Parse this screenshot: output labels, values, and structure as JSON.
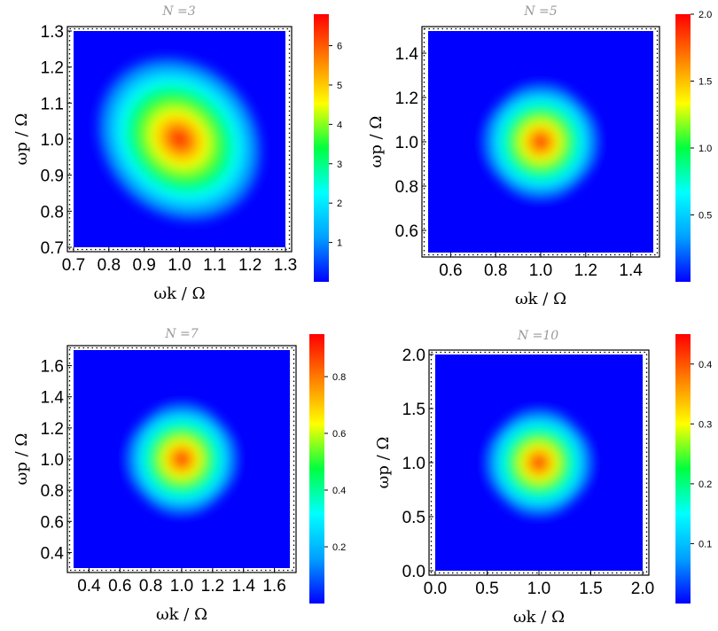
{
  "chart_data": [
    {
      "type": "heatmap",
      "title": "N =3",
      "xlabel": "ωk / Ω",
      "ylabel": "ωp / Ω",
      "xlim": [
        0.7,
        1.3
      ],
      "ylim": [
        0.7,
        1.3
      ],
      "xticks": [
        "0.7",
        "0.8",
        "0.9",
        "1.0",
        "1.1",
        "1.2",
        "1.3"
      ],
      "yticks": [
        "0.7",
        "0.8",
        "0.9",
        "1.0",
        "1.1",
        "1.2",
        "1.3"
      ],
      "colorbar": {
        "min": 0,
        "max": 6.8,
        "ticks": [
          1,
          2,
          3,
          4,
          5,
          6
        ]
      },
      "peak": {
        "x": 1.0,
        "y": 1.0,
        "value": 6.8
      },
      "shape": "ellipse tilted along anti-diagonal"
    },
    {
      "type": "heatmap",
      "title": "N =5",
      "xlabel": "ωk / Ω",
      "ylabel": "ωp / Ω",
      "xlim": [
        0.5,
        1.5
      ],
      "ylim": [
        0.5,
        1.5
      ],
      "xticks": [
        "0.6",
        "0.8",
        "1.0",
        "1.2",
        "1.4"
      ],
      "yticks": [
        "0.6",
        "0.8",
        "1.0",
        "1.2",
        "1.4"
      ],
      "colorbar": {
        "min": 0,
        "max": 2.0,
        "ticks": [
          0.5,
          1.0,
          1.5,
          2.0
        ]
      },
      "peak": {
        "x": 1.0,
        "y": 1.0,
        "value": 2.0
      },
      "shape": "diamond"
    },
    {
      "type": "heatmap",
      "title": "N =7",
      "xlabel": "ωk / Ω",
      "ylabel": "ωp / Ω",
      "xlim": [
        0.3,
        1.7
      ],
      "ylim": [
        0.3,
        1.7
      ],
      "xticks": [
        "0.4",
        "0.6",
        "0.8",
        "1.0",
        "1.2",
        "1.4",
        "1.6"
      ],
      "yticks": [
        "0.4",
        "0.6",
        "0.8",
        "1.0",
        "1.2",
        "1.4",
        "1.6"
      ],
      "colorbar": {
        "min": 0,
        "max": 0.95,
        "ticks": [
          0.2,
          0.4,
          0.6,
          0.8
        ]
      },
      "peak": {
        "x": 1.0,
        "y": 1.0,
        "value": 0.95
      },
      "shape": "diamond"
    },
    {
      "type": "heatmap",
      "title": "N =10",
      "xlabel": "ωk / Ω",
      "ylabel": "ωp / Ω",
      "xlim": [
        0.0,
        2.0
      ],
      "ylim": [
        0.0,
        2.0
      ],
      "xticks": [
        "0.0",
        "0.5",
        "1.0",
        "1.5",
        "2.0"
      ],
      "yticks": [
        "0.0",
        "0.5",
        "1.0",
        "1.5",
        "2.0"
      ],
      "colorbar": {
        "min": 0,
        "max": 0.45,
        "ticks": [
          0.1,
          0.2,
          0.3,
          0.4
        ]
      },
      "peak": {
        "x": 1.0,
        "y": 1.0,
        "value": 0.45
      },
      "shape": "diamond"
    }
  ],
  "colors": {
    "colormap": [
      "#0000ff",
      "#00a0ff",
      "#00ffff",
      "#00ff40",
      "#ffff00",
      "#ff8000",
      "#ff0000"
    ],
    "frame": "#000000",
    "title": "#999999"
  }
}
